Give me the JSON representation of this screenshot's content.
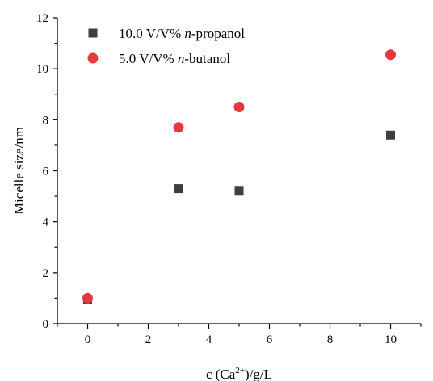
{
  "chart_data": {
    "type": "scatter",
    "xlabel": "c (Ca²⁺)/g/L",
    "xlabel_parts": {
      "prefix": "c (Ca",
      "sup": "2+",
      "suffix": ")/g/L"
    },
    "ylabel": "Micelle size/nm",
    "xlim": [
      -1,
      11
    ],
    "ylim": [
      0,
      12
    ],
    "xticks": [
      0,
      2,
      4,
      6,
      8,
      10
    ],
    "yticks": [
      0,
      2,
      4,
      6,
      8,
      10,
      12
    ],
    "grid": false,
    "legend_position": "top-left",
    "series": [
      {
        "name": "10.0 V/V% n-propanol",
        "name_parts": {
          "prefix": "10.0 V/V% ",
          "italic": "n",
          "suffix": "-propanol"
        },
        "marker": "square",
        "color": "#3f3f3f",
        "x": [
          0,
          3,
          5,
          10
        ],
        "y": [
          0.95,
          5.3,
          5.2,
          7.4
        ]
      },
      {
        "name": "5.0 V/V% n-butanol",
        "name_parts": {
          "prefix": "5.0 V/V% ",
          "italic": "n",
          "suffix": "-butanol"
        },
        "marker": "circle",
        "color": "#e8383d",
        "x": [
          0,
          3,
          5,
          10
        ],
        "y": [
          1.0,
          7.7,
          8.5,
          10.55
        ]
      }
    ]
  }
}
